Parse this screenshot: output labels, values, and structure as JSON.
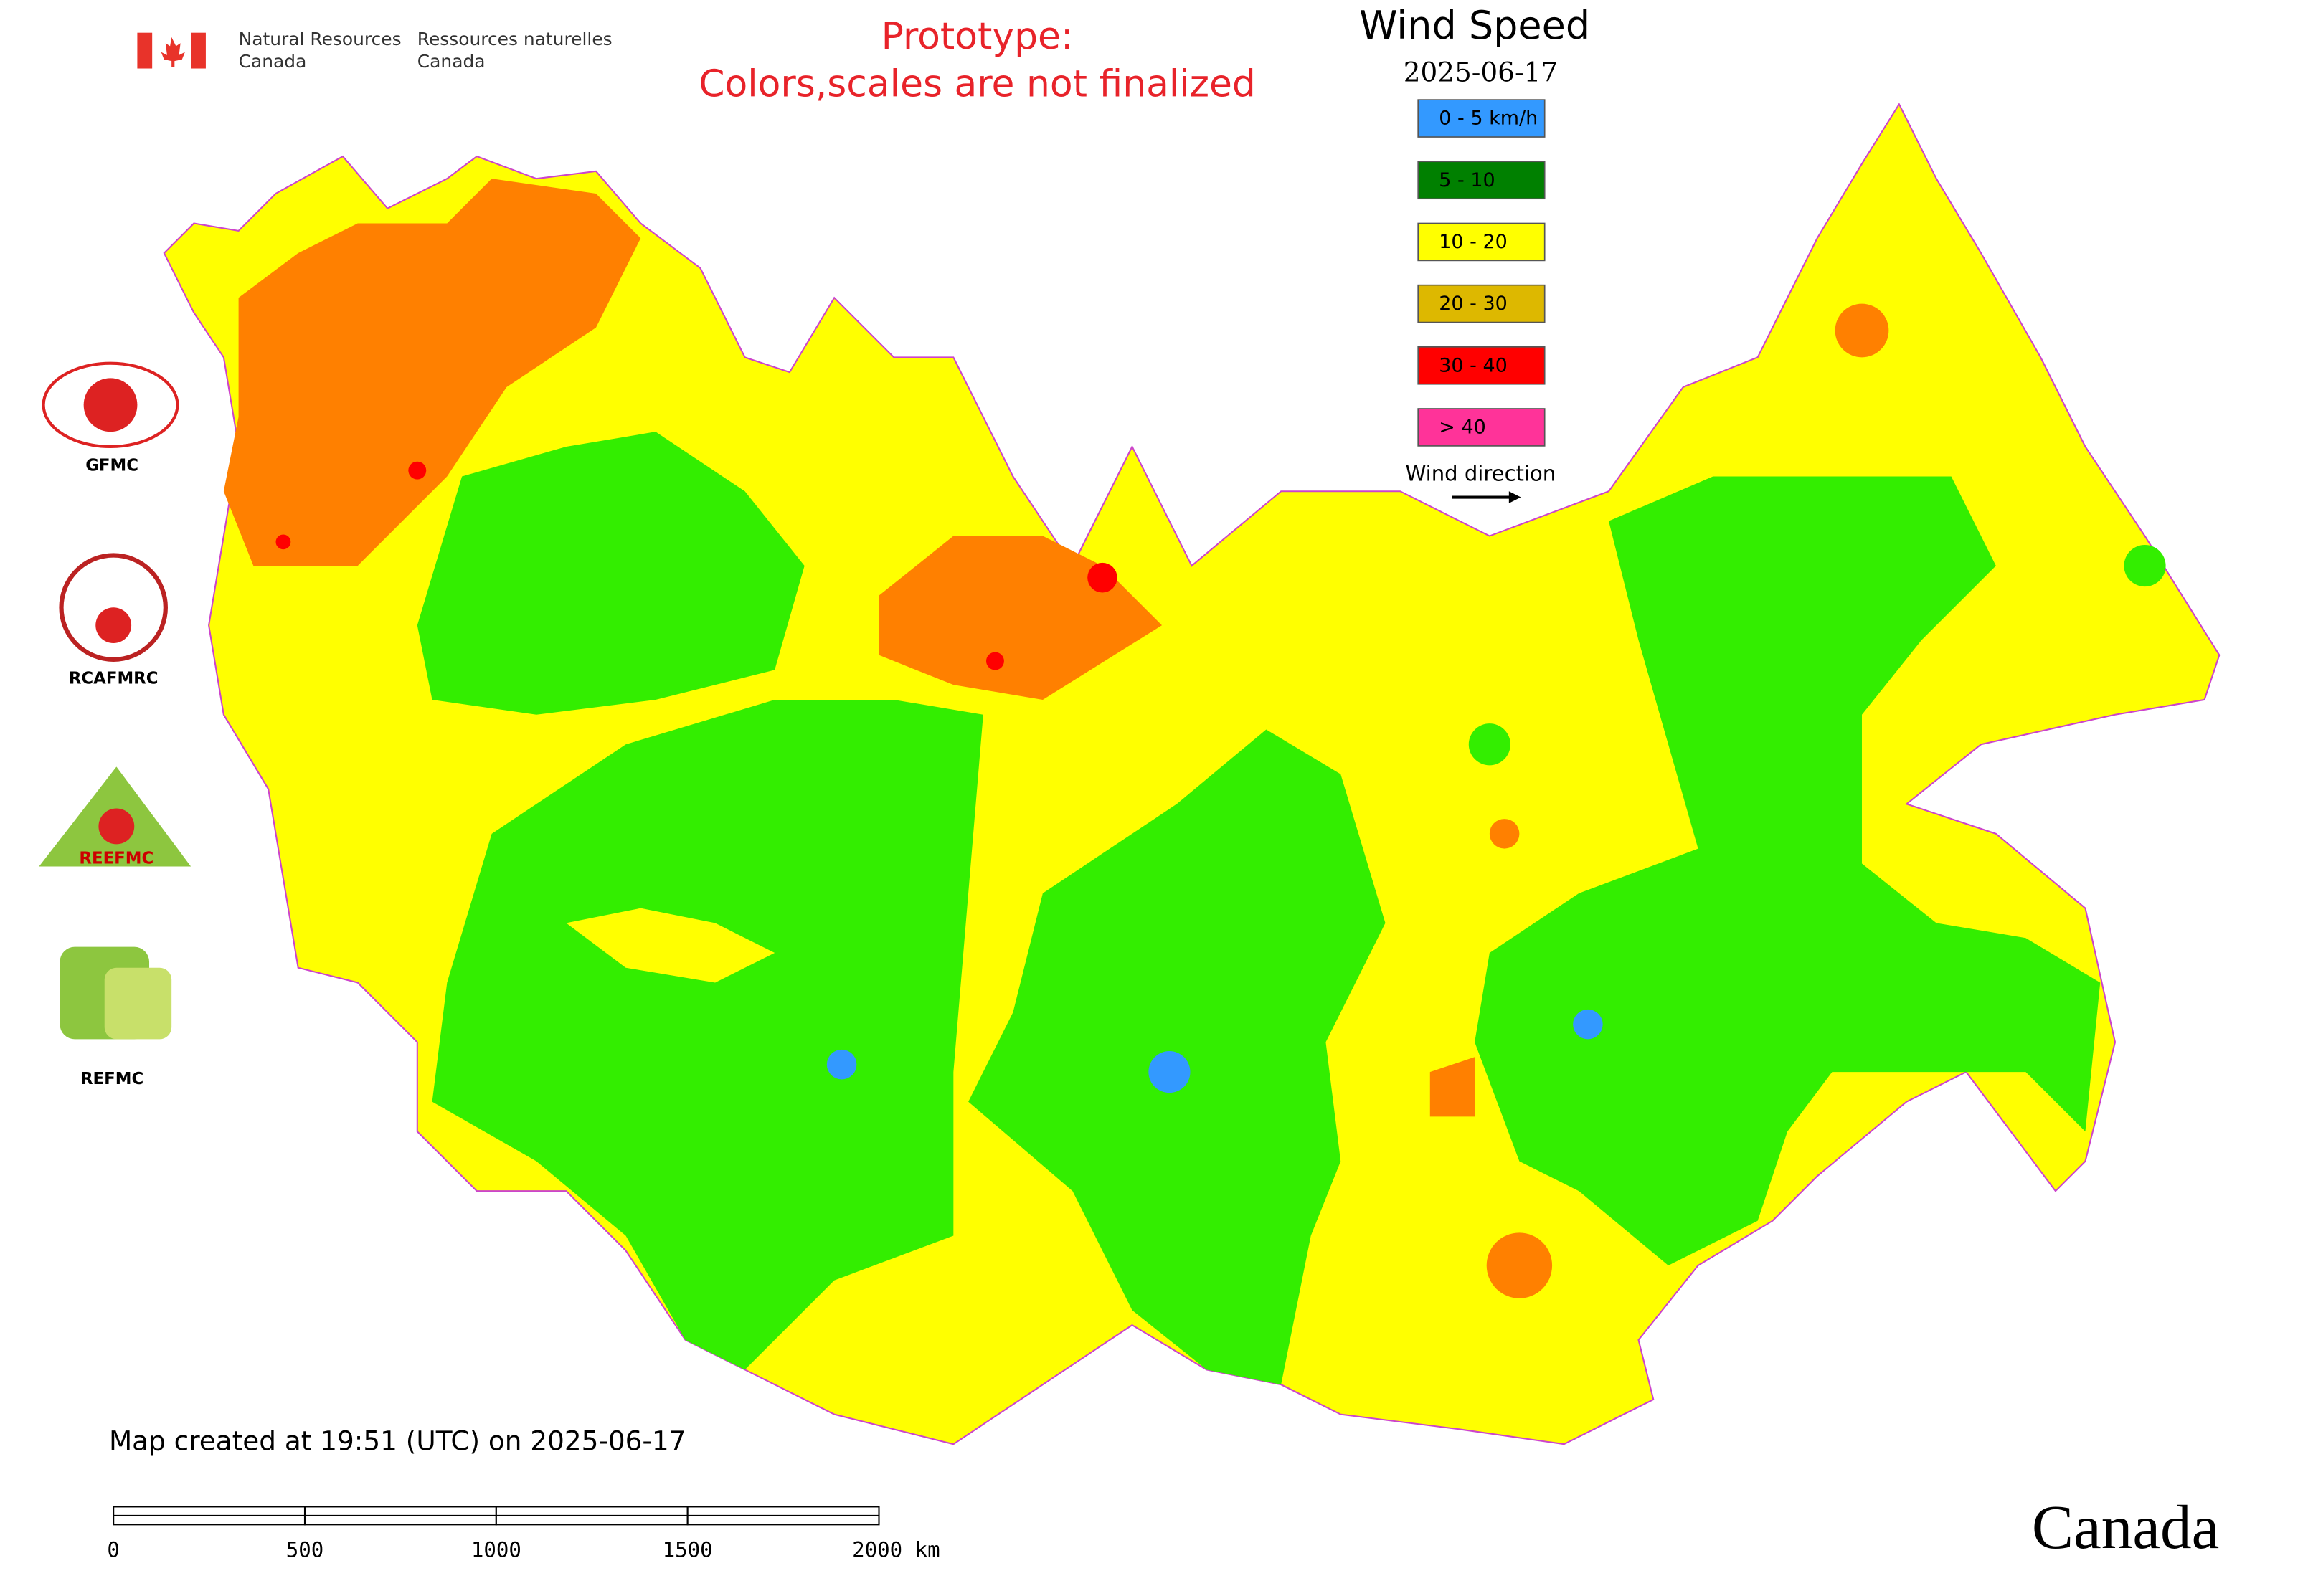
{
  "header": {
    "agency_en": [
      "Natural Resources",
      "Canada"
    ],
    "agency_fr": [
      "Ressources naturelles",
      "Canada"
    ],
    "notice": [
      "Prototype:",
      "Colors,scales are not finalized"
    ]
  },
  "map": {
    "title": "Wind Speed",
    "date": "2025-06-17",
    "legend": [
      {
        "label": "0 - 5 km/h",
        "color": "#3399ff"
      },
      {
        "label": "5 - 10",
        "color": "#008000"
      },
      {
        "label": "10 - 20",
        "color": "#ffff00"
      },
      {
        "label": "20 - 30",
        "color": "#ddb800"
      },
      {
        "label": "30 - 40",
        "color": "#ff0000"
      },
      {
        "label": "> 40",
        "color": "#ff3399"
      }
    ],
    "direction_label": "Wind direction"
  },
  "logos": [
    "GFMC",
    "RCAFMRC",
    "REEFMC",
    "REFMC"
  ],
  "footer": {
    "created": "Map created at 19:51 (UTC) on 2025-06-17",
    "scale": [
      "0",
      "500",
      "1000",
      "1500",
      "2000 km"
    ],
    "wordmark": "Canada"
  }
}
